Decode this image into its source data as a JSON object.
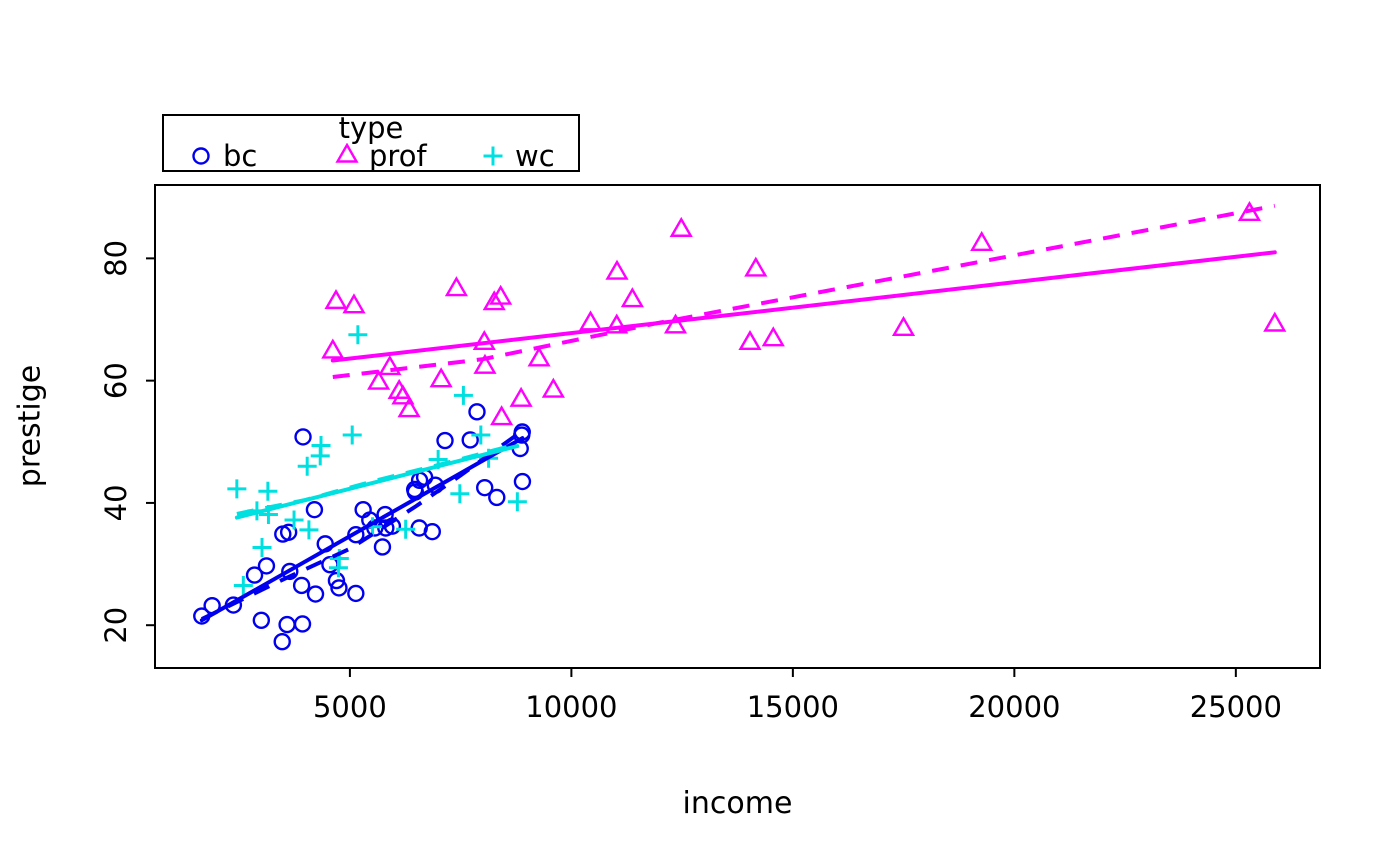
{
  "chart_data": {
    "type": "scatter",
    "title": "",
    "xlabel": "income",
    "ylabel": "prestige",
    "xlim": [
      600,
      26900
    ],
    "ylim": [
      13,
      92
    ],
    "x_ticks": [
      5000,
      10000,
      15000,
      20000,
      25000
    ],
    "y_ticks": [
      20,
      40,
      60,
      80
    ],
    "grid": false,
    "background": "#ffffff",
    "axis_color": "#000000",
    "legend": {
      "title": "type",
      "position": "top-left",
      "entries": [
        {
          "label": "bc",
          "marker": "circle",
          "color": "#0000EE"
        },
        {
          "label": "prof",
          "marker": "triangle",
          "color": "#FF00FF"
        },
        {
          "label": "wc",
          "marker": "plus",
          "color": "#00E0E0"
        }
      ]
    },
    "series": [
      {
        "name": "bc",
        "marker": "circle",
        "color": "#0000EE",
        "points": [
          [
            3485,
            34.9
          ],
          [
            2370,
            23.3
          ],
          [
            8895,
            43.5
          ],
          [
            8891,
            51.6
          ],
          [
            3116,
            29.7
          ],
          [
            3930,
            20.2
          ],
          [
            7869,
            54.9
          ],
          [
            3000,
            20.8
          ],
          [
            3472,
            17.3
          ],
          [
            3582,
            20.1
          ],
          [
            1656,
            21.5
          ],
          [
            6860,
            35.3
          ],
          [
            4199,
            38.9
          ],
          [
            5134,
            25.2
          ],
          [
            5134,
            34.8
          ],
          [
            1890,
            23.2
          ],
          [
            4443,
            33.3
          ],
          [
            3643,
            28.8
          ],
          [
            8043,
            42.5
          ],
          [
            6686,
            44.2
          ],
          [
            6565,
            35.9
          ],
          [
            6477,
            41.8
          ],
          [
            5811,
            35.9
          ],
          [
            6573,
            43.7
          ],
          [
            3942,
            50.8
          ],
          [
            5449,
            37.2
          ],
          [
            2847,
            28.2
          ],
          [
            5795,
            38.1
          ],
          [
            7716,
            50.3
          ],
          [
            4696,
            27.3
          ],
          [
            8316,
            40.9
          ],
          [
            7147,
            50.2
          ],
          [
            8880,
            51.1
          ],
          [
            5299,
            38.9
          ],
          [
            5959,
            36.2
          ],
          [
            4549,
            29.9
          ],
          [
            6928,
            42.9
          ],
          [
            3910,
            26.5
          ],
          [
            8845,
            48.9
          ],
          [
            5562,
            35.9
          ],
          [
            4224,
            25.1
          ],
          [
            4753,
            26.1
          ],
          [
            6462,
            42.2
          ],
          [
            3617,
            35.2
          ],
          [
            5735,
            32.8
          ]
        ]
      },
      {
        "name": "prof",
        "marker": "triangle",
        "color": "#FF00FF",
        "points": [
          [
            12351,
            68.8
          ],
          [
            25879,
            69.1
          ],
          [
            9271,
            63.4
          ],
          [
            8865,
            56.8
          ],
          [
            8403,
            73.5
          ],
          [
            11030,
            77.6
          ],
          [
            8258,
            72.6
          ],
          [
            14163,
            78.1
          ],
          [
            11377,
            73.1
          ],
          [
            11023,
            68.8
          ],
          [
            5902,
            62.0
          ],
          [
            7059,
            60.0
          ],
          [
            8425,
            53.8
          ],
          [
            8049,
            62.2
          ],
          [
            7405,
            74.9
          ],
          [
            6336,
            55.1
          ],
          [
            19263,
            82.3
          ],
          [
            6112,
            58.1
          ],
          [
            9593,
            58.3
          ],
          [
            4686,
            72.8
          ],
          [
            12480,
            84.6
          ],
          [
            5648,
            59.6
          ],
          [
            8034,
            66.1
          ],
          [
            25308,
            87.2
          ],
          [
            14558,
            66.7
          ],
          [
            17498,
            68.4
          ],
          [
            4614,
            64.7
          ],
          [
            5092,
            72.1
          ],
          [
            10432,
            69.3
          ],
          [
            6197,
            57.2
          ],
          [
            14032,
            66.1
          ]
        ]
      },
      {
        "name": "wc",
        "marker": "plus",
        "color": "#00E0E0",
        "points": [
          [
            5180,
            67.5
          ],
          [
            7562,
            57.6
          ],
          [
            4036,
            46.0
          ],
          [
            3148,
            41.9
          ],
          [
            4348,
            49.4
          ],
          [
            2448,
            42.3
          ],
          [
            4330,
            47.7
          ],
          [
            4761,
            30.9
          ],
          [
            3016,
            32.7
          ],
          [
            2901,
            38.7
          ],
          [
            5511,
            36.1
          ],
          [
            3739,
            37.2
          ],
          [
            3161,
            38.1
          ],
          [
            4741,
            29.4
          ],
          [
            5052,
            51.1
          ],
          [
            6259,
            35.7
          ],
          [
            4075,
            35.6
          ],
          [
            7482,
            41.5
          ],
          [
            8780,
            40.2
          ],
          [
            2594,
            26.5
          ],
          [
            8131,
            47.3
          ],
          [
            6992,
            47.1
          ],
          [
            7956,
            51.1
          ]
        ]
      }
    ],
    "fit_lines": [
      {
        "series": "bc",
        "style": "solid",
        "points": [
          [
            1656,
            20.8
          ],
          [
            8895,
            50.6
          ]
        ]
      },
      {
        "series": "bc",
        "style": "dashed",
        "points": [
          [
            1656,
            21.0
          ],
          [
            3500,
            27.5
          ],
          [
            5000,
            32.5
          ],
          [
            6500,
            39.5
          ],
          [
            7500,
            44.5
          ],
          [
            8895,
            51.8
          ]
        ]
      },
      {
        "series": "wc",
        "style": "solid",
        "points": [
          [
            2448,
            37.6
          ],
          [
            8780,
            49.3
          ]
        ]
      },
      {
        "series": "wc",
        "style": "dashed",
        "points": [
          [
            2448,
            38.2
          ],
          [
            4000,
            40.5
          ],
          [
            5500,
            43.5
          ],
          [
            7000,
            46.2
          ],
          [
            8780,
            49.6
          ]
        ]
      },
      {
        "series": "prof",
        "style": "solid",
        "points": [
          [
            4614,
            63.3
          ],
          [
            25879,
            81.0
          ]
        ]
      },
      {
        "series": "prof",
        "style": "dashed",
        "points": [
          [
            4614,
            60.6
          ],
          [
            8000,
            63.5
          ],
          [
            12000,
            69.5
          ],
          [
            16000,
            75.0
          ],
          [
            20000,
            80.5
          ],
          [
            25879,
            88.6
          ]
        ]
      }
    ]
  }
}
